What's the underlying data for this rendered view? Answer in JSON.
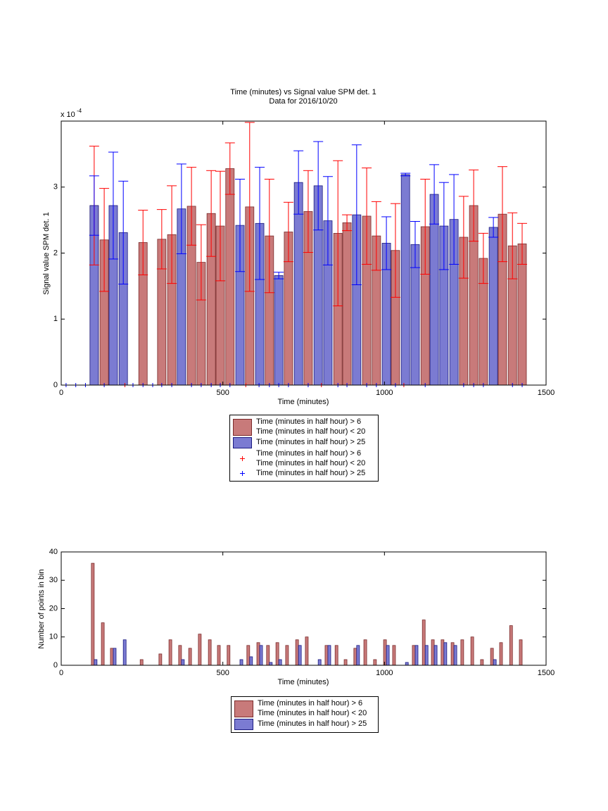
{
  "chart_data": [
    {
      "type": "bar",
      "title": "Time (minutes) vs Signal value SPM det. 1",
      "subtitle": "Data for 2016/10/20",
      "y_multiplier": "x 10",
      "y_multiplier_exponent": "-4",
      "xlabel": "Time (minutes)",
      "ylabel": "Signal value SPM det. 1",
      "x": [
        102,
        133,
        161,
        192,
        253,
        311,
        342,
        372,
        403,
        433,
        464,
        492,
        522,
        553,
        583,
        614,
        644,
        673,
        703,
        734,
        764,
        795,
        825,
        856,
        884,
        914,
        945,
        975,
        1006,
        1034,
        1065,
        1095,
        1126,
        1154,
        1184,
        1215,
        1245,
        1276,
        1306,
        1337,
        1365,
        1396,
        1426
      ],
      "series": [
        {
          "name": "Time (minutes in half hour) > 6\nTime (minutes in half hour) < 20",
          "color": "#c87a7a",
          "edgecolor": "#7a2a2a",
          "error_color": "#ff0000",
          "values": [
            2.72,
            2.2,
            null,
            null,
            2.16,
            2.21,
            2.28,
            null,
            2.71,
            1.86,
            2.6,
            2.41,
            3.28,
            null,
            2.7,
            null,
            2.26,
            null,
            2.32,
            null,
            2.63,
            null,
            null,
            2.3,
            2.46,
            null,
            2.56,
            2.26,
            null,
            2.04,
            null,
            null,
            2.4,
            null,
            null,
            null,
            2.24,
            2.72,
            1.92,
            null,
            2.59,
            2.11,
            2.14
          ],
          "errors": [
            0.9,
            0.78,
            null,
            null,
            0.49,
            0.45,
            0.74,
            null,
            0.59,
            0.57,
            0.65,
            0.83,
            0.39,
            null,
            1.28,
            null,
            0.86,
            null,
            0.45,
            null,
            0.62,
            null,
            null,
            1.1,
            0.12,
            null,
            0.73,
            0.52,
            null,
            0.71,
            null,
            null,
            0.72,
            null,
            null,
            null,
            0.62,
            0.54,
            0.38,
            null,
            0.72,
            0.5,
            0.31
          ]
        },
        {
          "name": "Time (minutes in half hour) > 25",
          "color": "#7b7bd2",
          "edgecolor": "#1a1a80",
          "error_color": "#0000ff",
          "values": [
            2.72,
            null,
            2.72,
            2.31,
            null,
            null,
            null,
            2.67,
            null,
            null,
            null,
            null,
            null,
            2.42,
            null,
            2.45,
            null,
            1.66,
            null,
            3.07,
            null,
            3.02,
            2.49,
            null,
            null,
            2.58,
            null,
            null,
            2.15,
            null,
            3.19,
            2.13,
            null,
            2.89,
            2.41,
            2.51,
            null,
            null,
            null,
            2.39,
            null,
            null,
            null
          ],
          "errors": [
            0.45,
            null,
            0.81,
            0.78,
            null,
            null,
            null,
            0.68,
            null,
            null,
            null,
            null,
            null,
            0.7,
            null,
            0.85,
            null,
            0.05,
            null,
            0.48,
            null,
            0.67,
            0.67,
            null,
            null,
            1.06,
            null,
            null,
            0.4,
            null,
            0.02,
            0.35,
            null,
            0.45,
            0.66,
            0.68,
            null,
            null,
            null,
            0.15,
            null,
            null,
            null
          ]
        }
      ],
      "markers": [
        {
          "name": "Time (minutes in half hour) > 6\nTime (minutes in half hour) < 20",
          "color": "#ff0000",
          "x": [
            197,
            571,
            805,
            1060
          ],
          "values": [
            0,
            0,
            0,
            0
          ]
        },
        {
          "name": "Time (minutes in half hour) > 25",
          "color": "#0000ff",
          "x": [
            15,
            45,
            75,
            133,
            222,
            253,
            283,
            311,
            342,
            403,
            433,
            464,
            492,
            522,
            612,
            644,
            673,
            703,
            764,
            856,
            884,
            945,
            975,
            1034,
            1126,
            1245,
            1276,
            1306,
            1396,
            1426
          ],
          "values": [
            0,
            0,
            0,
            0,
            0,
            0,
            0,
            0,
            0,
            0,
            0,
            0,
            0,
            0,
            0,
            0,
            0,
            0,
            0,
            0,
            0,
            0,
            0,
            0,
            0,
            0,
            0,
            0,
            0,
            0
          ]
        }
      ],
      "xlim": [
        0,
        1500
      ],
      "xticks": [
        0,
        500,
        1000,
        1500
      ],
      "ylim": [
        0,
        4
      ],
      "yticks": [
        0,
        1,
        2,
        3
      ]
    },
    {
      "type": "bar",
      "xlabel": "Time (minutes)",
      "ylabel": "Number of points in bin",
      "x": [
        102,
        133,
        161,
        192,
        253,
        311,
        342,
        372,
        403,
        433,
        464,
        492,
        522,
        553,
        583,
        614,
        644,
        673,
        703,
        734,
        764,
        795,
        825,
        856,
        884,
        914,
        945,
        975,
        1006,
        1034,
        1065,
        1095,
        1126,
        1154,
        1184,
        1215,
        1245,
        1276,
        1306,
        1337,
        1365,
        1396,
        1426
      ],
      "series": [
        {
          "name": "Time (minutes in half hour) > 6\nTime (minutes in half hour) < 20",
          "color": "#c87a7a",
          "edgecolor": "#7a2a2a",
          "values": [
            36,
            15,
            6,
            null,
            2,
            4,
            9,
            7,
            6,
            11,
            9,
            7,
            7,
            null,
            7,
            8,
            7,
            8,
            7,
            9,
            10,
            null,
            7,
            7,
            2,
            6,
            9,
            2,
            9,
            7,
            null,
            7,
            16,
            9,
            9,
            8,
            9,
            10,
            2,
            6,
            8,
            14,
            9
          ]
        },
        {
          "name": "Time (minutes in half hour) > 25",
          "color": "#7b7bd2",
          "edgecolor": "#1a1a80",
          "values": [
            2,
            null,
            6,
            9,
            null,
            null,
            null,
            2,
            null,
            null,
            null,
            null,
            null,
            2,
            3,
            7,
            1,
            2,
            null,
            7,
            null,
            2,
            7,
            null,
            null,
            7,
            null,
            null,
            7,
            null,
            1,
            7,
            7,
            7,
            8,
            7,
            null,
            null,
            null,
            2,
            null,
            null,
            null
          ]
        }
      ],
      "xlim": [
        0,
        1500
      ],
      "xticks": [
        0,
        500,
        1000,
        1500
      ],
      "ylim": [
        0,
        40
      ],
      "yticks": [
        0,
        10,
        20,
        30,
        40
      ]
    }
  ]
}
